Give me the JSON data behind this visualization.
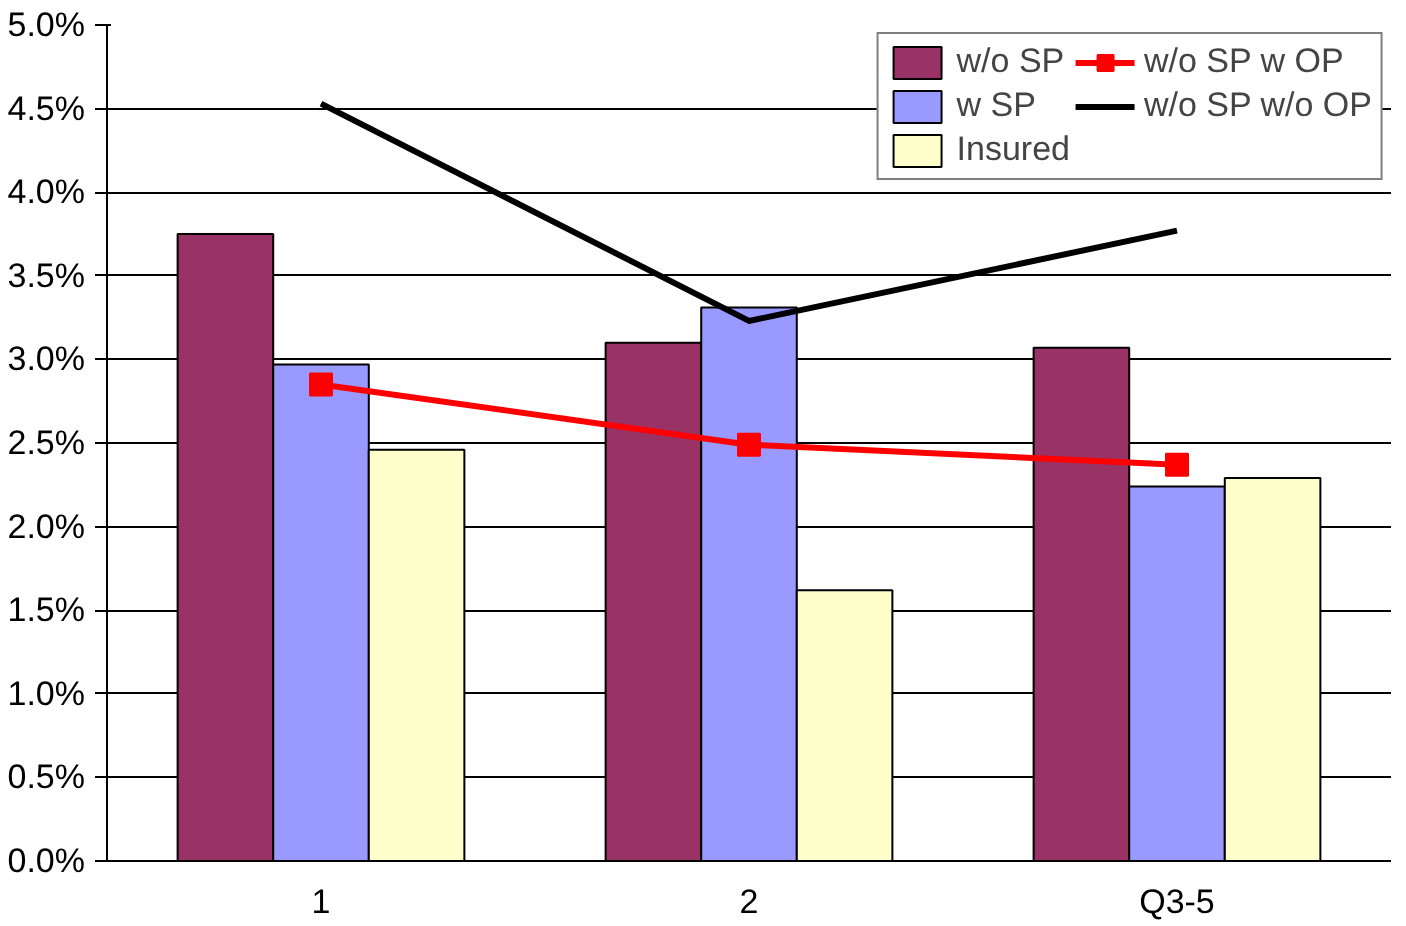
{
  "chart_data": {
    "type": "bar",
    "categories": [
      "1",
      "2",
      "Q3-5"
    ],
    "series": [
      {
        "name": "w/o SP",
        "color": "#993366",
        "values": [
          3.75,
          3.1,
          3.07
        ]
      },
      {
        "name": "w SP",
        "color": "#9999ff",
        "values": [
          2.97,
          3.31,
          2.24
        ]
      },
      {
        "name": "Insured",
        "color": "#ffffcc",
        "values": [
          2.46,
          1.62,
          2.29
        ]
      },
      {
        "name": "w/o SP w OP",
        "color": "#ff0000",
        "type": "line",
        "marker": "square",
        "values": [
          2.85,
          2.49,
          2.37
        ]
      },
      {
        "name": "w/o SP w/o OP",
        "color": "#000000",
        "type": "line",
        "marker": "none",
        "values": [
          4.53,
          3.23,
          3.77
        ]
      }
    ],
    "ylim": [
      0,
      5
    ],
    "yticks": [
      {
        "value": 0,
        "label": "0.0%"
      },
      {
        "value": 0.5,
        "label": "0.5%"
      },
      {
        "value": 1,
        "label": "1.0%"
      },
      {
        "value": 1.5,
        "label": "1.5%"
      },
      {
        "value": 2,
        "label": "2.0%"
      },
      {
        "value": 2.5,
        "label": "2.5%"
      },
      {
        "value": 3,
        "label": "3.0%"
      },
      {
        "value": 3.5,
        "label": "3.5%"
      },
      {
        "value": 4,
        "label": "4.0%"
      },
      {
        "value": 4.5,
        "label": "4.5%"
      },
      {
        "value": 5,
        "label": "5.0%"
      }
    ],
    "grid": "y",
    "legend": "top right"
  }
}
